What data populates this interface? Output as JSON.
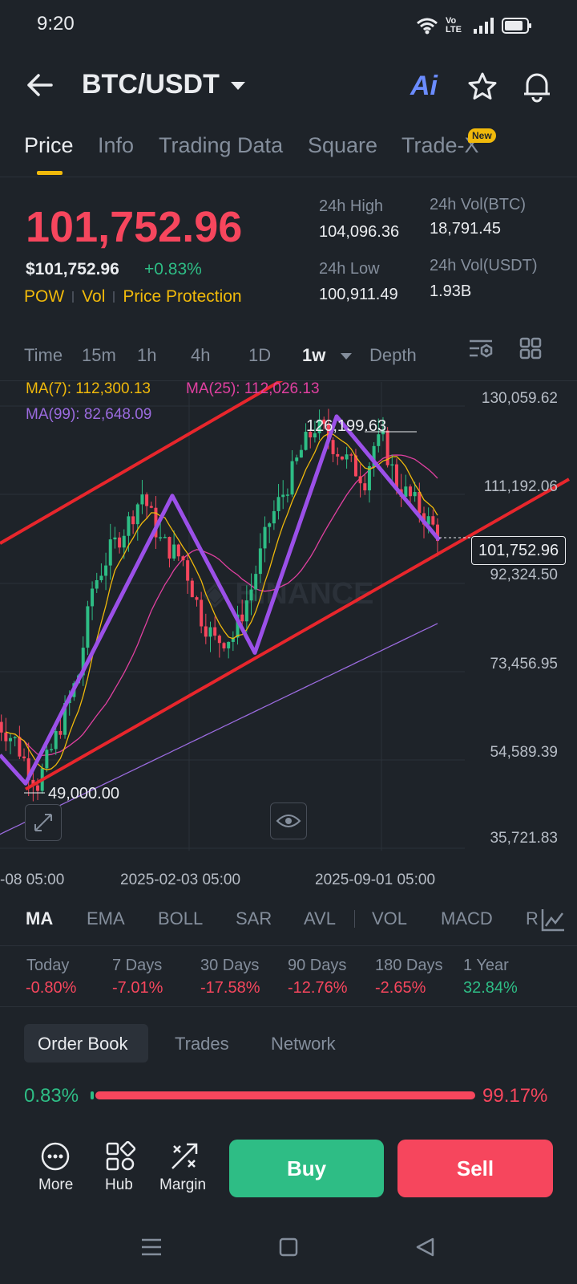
{
  "status": {
    "time": "9:20",
    "network": "Vo LTE"
  },
  "header": {
    "pair": "BTC/USDT",
    "ai_label": "Ai"
  },
  "tabs": [
    {
      "label": "Price"
    },
    {
      "label": "Info"
    },
    {
      "label": "Trading Data"
    },
    {
      "label": "Square"
    },
    {
      "label": "Trade-X"
    }
  ],
  "new_badge": "New",
  "price": {
    "last": "101,752.96",
    "usd": "$101,752.96",
    "change": "+0.83%",
    "tags": [
      "POW",
      "Vol",
      "Price Protection"
    ]
  },
  "stats": {
    "high_label": "24h High",
    "high": "104,096.36",
    "low_label": "24h Low",
    "low": "100,911.49",
    "vol_btc_label": "24h Vol(BTC)",
    "vol_btc": "18,791.45",
    "vol_usdt_label": "24h Vol(USDT)",
    "vol_usdt": "1.93B"
  },
  "intervals": [
    "Time",
    "15m",
    "1h",
    "4h",
    "1D",
    "1w",
    "Depth"
  ],
  "chart_data": {
    "type": "candlestick",
    "ma_labels": {
      "ma7": "MA(7): 112,300.13",
      "ma25": "MA(25): 112,026.13",
      "ma99": "MA(99): 82,648.09"
    },
    "y_ticks": [
      "130,059.62",
      "111,192.06",
      "92,324.50",
      "73,456.95",
      "54,589.39",
      "35,721.83"
    ],
    "x_ticks": [
      "-08 05:00",
      "2025-02-03 05:00",
      "2025-09-01 05:00"
    ],
    "high_annotation": "126,199.63",
    "low_annotation": "49,000.00",
    "current_price": "101,752.96",
    "ylim": [
      35721.83,
      130059.62
    ],
    "colors": {
      "up": "#2ebd85",
      "down": "#f6465d",
      "ma7": "#f0b90b",
      "ma25": "#e040a0",
      "ma99": "#9b6bdf",
      "channel": "#e8262c",
      "zigzag": "#9b50e8"
    }
  },
  "indicators": [
    "MA",
    "EMA",
    "BOLL",
    "SAR",
    "AVL",
    "VOL",
    "MACD",
    "R"
  ],
  "performance": [
    {
      "label": "Today",
      "value": "-0.80%",
      "dir": "down"
    },
    {
      "label": "7 Days",
      "value": "-7.01%",
      "dir": "down"
    },
    {
      "label": "30 Days",
      "value": "-17.58%",
      "dir": "down"
    },
    {
      "label": "90 Days",
      "value": "-12.76%",
      "dir": "down"
    },
    {
      "label": "180 Days",
      "value": "-2.65%",
      "dir": "down"
    },
    {
      "label": "1 Year",
      "value": "32.84%",
      "dir": "up"
    }
  ],
  "orderbook_tabs": [
    "Order Book",
    "Trades",
    "Network"
  ],
  "ratio": {
    "buy": "0.83%",
    "sell": "99.17%",
    "buy_fraction": 0.0083
  },
  "actions": {
    "more": "More",
    "hub": "Hub",
    "margin": "Margin",
    "buy": "Buy",
    "sell": "Sell"
  }
}
